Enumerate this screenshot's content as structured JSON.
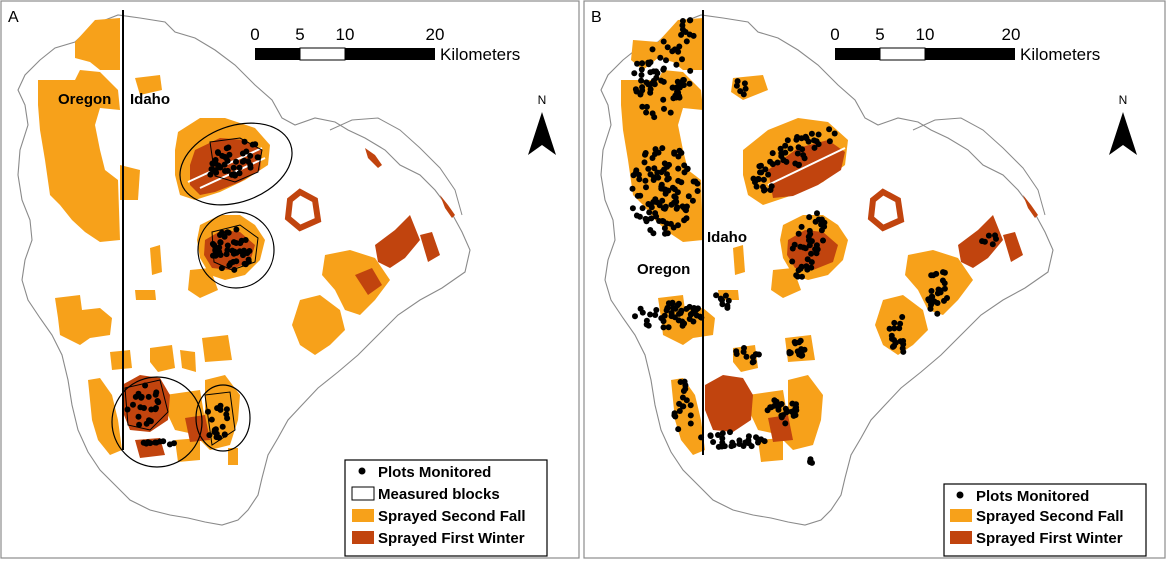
{
  "colors": {
    "sprayed_second_fall": "#F7A11A",
    "sprayed_first_winter": "#C1440E",
    "boundary": "#8a8a8a",
    "state_line": "#000000",
    "plot": "#000000"
  },
  "panels": [
    {
      "letter": "A",
      "state_left": "Oregon",
      "state_right": "Idaho",
      "scale_ticks": [
        "0",
        "5",
        "10",
        "20"
      ],
      "scale_unit": "Kilometers",
      "north": "N",
      "legend": [
        {
          "label": "Plots Monitored",
          "symbol": "dot"
        },
        {
          "label": "Measured blocks",
          "symbol": "outline-box"
        },
        {
          "label": "Sprayed Second Fall",
          "symbol": "fill-second-fall"
        },
        {
          "label": "Sprayed First Winter",
          "symbol": "fill-first-winter"
        }
      ]
    },
    {
      "letter": "B",
      "state_left": "Oregon",
      "state_right": "Idaho",
      "scale_ticks": [
        "0",
        "5",
        "10",
        "20"
      ],
      "scale_unit": "Kilometers",
      "north": "N",
      "legend": [
        {
          "label": "Plots Monitored",
          "symbol": "dot"
        },
        {
          "label": "Sprayed Second Fall",
          "symbol": "fill-second-fall"
        },
        {
          "label": "Sprayed First Winter",
          "symbol": "fill-first-winter"
        }
      ]
    }
  ]
}
